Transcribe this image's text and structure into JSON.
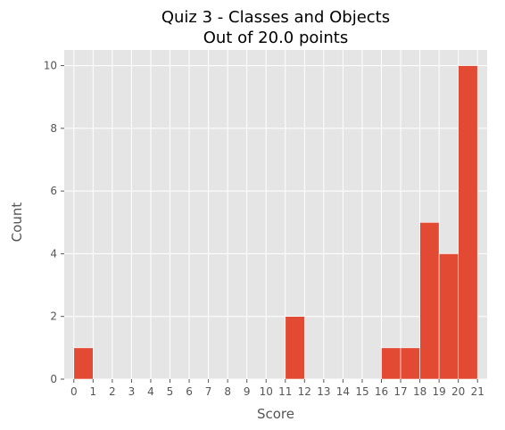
{
  "chart_data": {
    "type": "bar",
    "title_line1": "Quiz 3 - Classes and Objects",
    "title_line2": "Out of 20.0 points",
    "xlabel": "Score",
    "ylabel": "Count",
    "x_ticks": [
      "0",
      "1",
      "2",
      "3",
      "4",
      "5",
      "6",
      "7",
      "8",
      "9",
      "10",
      "11",
      "12",
      "13",
      "14",
      "15",
      "16",
      "17",
      "18",
      "19",
      "20",
      "21"
    ],
    "y_ticks": [
      "0",
      "2",
      "4",
      "6",
      "8",
      "10"
    ],
    "xlim": [
      -0.5,
      21.5
    ],
    "ylim": [
      0,
      10.5
    ],
    "bins": [
      {
        "start": 0,
        "end": 1,
        "count": 1
      },
      {
        "start": 11,
        "end": 12,
        "count": 2
      },
      {
        "start": 16,
        "end": 17,
        "count": 1
      },
      {
        "start": 17,
        "end": 18,
        "count": 1
      },
      {
        "start": 18,
        "end": 19,
        "count": 5
      },
      {
        "start": 19,
        "end": 20,
        "count": 4
      },
      {
        "start": 20,
        "end": 21,
        "count": 10
      }
    ],
    "grid": true,
    "bar_color": "#E24A33",
    "plot_background": "#E5E5E5",
    "grid_color": "#FFFFFF"
  }
}
